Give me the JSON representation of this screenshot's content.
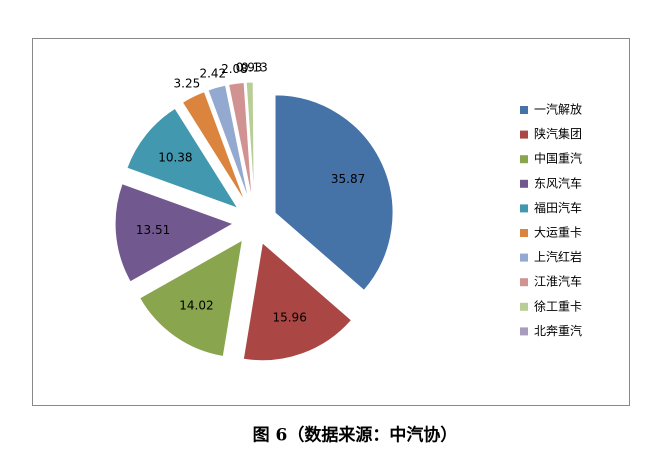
{
  "chart_data": {
    "type": "pie",
    "categories": [
      "一汽解放",
      "陕汽集团",
      "中国重汽",
      "东风汽车",
      "福田汽车",
      "大运重卡",
      "上汽红岩",
      "江淮汽车",
      "徐工重卡",
      "北奔重汽"
    ],
    "values": [
      35.87,
      15.96,
      14.02,
      13.51,
      10.38,
      3.25,
      2.42,
      2.08,
      0.93,
      0.13
    ],
    "colors": [
      "#4572A7",
      "#AA4643",
      "#89A54E",
      "#71588F",
      "#4198AF",
      "#DB843D",
      "#93A9CF",
      "#D19392",
      "#B9CD96",
      "#A99BBD"
    ],
    "legend": "right",
    "exploded": true
  },
  "caption": "图 6（数据来源：中汽协）"
}
